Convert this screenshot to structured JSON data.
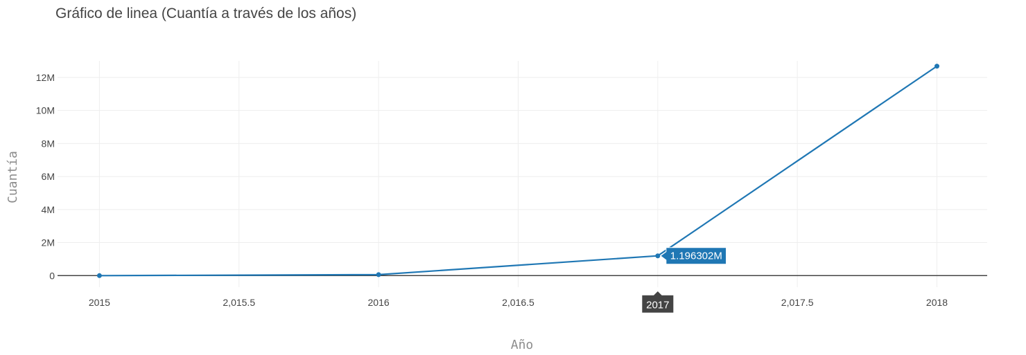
{
  "chart_data": {
    "type": "line",
    "title": "Gráfico de linea (Cuantía a través de los años)",
    "xlabel": "Año",
    "ylabel": "Cuantía",
    "x": [
      2015,
      2016,
      2017,
      2018
    ],
    "series": [
      {
        "values": [
          0,
          60000,
          1196302,
          12680000
        ],
        "color": "#1f77b4"
      }
    ],
    "xlim": [
      2014.85,
      2018.18
    ],
    "ylim": [
      -700000,
      13000000
    ],
    "x_ticks": [
      2015,
      2015.5,
      2016,
      2016.5,
      2017,
      2017.5,
      2018
    ],
    "x_tick_labels": [
      "2015",
      "2,015.5",
      "2016",
      "2,016.5",
      "2017",
      "2,017.5",
      "2018"
    ],
    "y_ticks": [
      0,
      2000000,
      4000000,
      6000000,
      8000000,
      10000000,
      12000000
    ],
    "y_tick_labels": [
      "0",
      "2M",
      "4M",
      "6M",
      "8M",
      "10M",
      "12M"
    ],
    "grid": true,
    "hover": {
      "x": 2017,
      "y": 1196302,
      "x_label": "2017",
      "y_label": "1.196302M",
      "y_color": "#1f77b4",
      "x_color": "#444444"
    }
  }
}
